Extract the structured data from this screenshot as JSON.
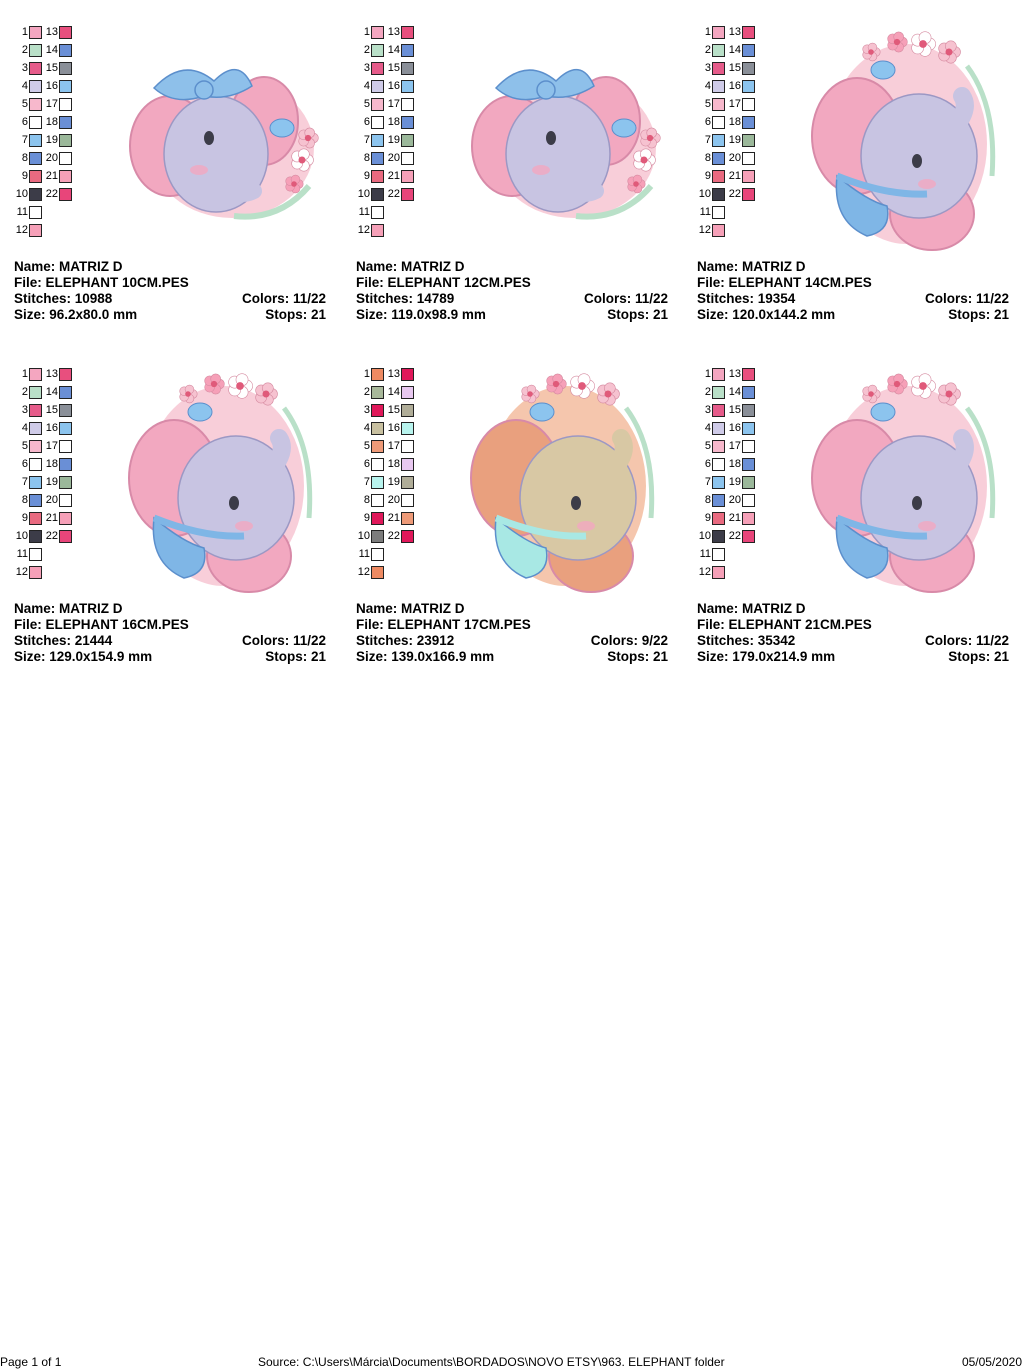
{
  "palette_numbers": [
    "1",
    "2",
    "3",
    "4",
    "5",
    "6",
    "7",
    "8",
    "9",
    "10",
    "11",
    "12",
    "13",
    "14",
    "15",
    "16",
    "17",
    "18",
    "19",
    "20",
    "21",
    "22"
  ],
  "labels": {
    "name": "Name:",
    "file": "File:",
    "stitches": "Stitches:",
    "colors": "Colors:",
    "size": "Size:",
    "stops": "Stops:"
  },
  "designs": [
    {
      "name": "MATRIZ D",
      "file": "ELEPHANT 10CM.PES",
      "stitches": "10988",
      "colors": "11/22",
      "size": "96.2x80.0 mm",
      "stops": "21",
      "variant": "a",
      "theme": {
        "body": "#c8c4e2",
        "ear": "#f2a8c0",
        "bow": "#8ec0ea",
        "ring": "#f6c2d0"
      },
      "swatches": [
        "#f4a6c0",
        "#b9e0c8",
        "#e65b8a",
        "#cfcbe8",
        "#f7b8cc",
        "#ffffff",
        "#8cc4ee",
        "#6a8fd6",
        "#e96a80",
        "#3c3c48",
        "#ffffff",
        "#f6a0b8",
        "#e84f7e",
        "#6a8fd6",
        "#8a8f98",
        "#8cc4ee",
        "#ffffff",
        "#6a8fd6",
        "#9bb89a",
        "#ffffff",
        "#f6a0b8",
        "#e8457a"
      ]
    },
    {
      "name": "MATRIZ D",
      "file": "ELEPHANT 12CM.PES",
      "stitches": "14789",
      "colors": "11/22",
      "size": "119.0x98.9 mm",
      "stops": "21",
      "variant": "a",
      "theme": {
        "body": "#c8c4e2",
        "ear": "#f2a8c0",
        "bow": "#8ec0ea",
        "ring": "#f6c2d0"
      },
      "swatches": [
        "#f4a6c0",
        "#b9e0c8",
        "#e65b8a",
        "#cfcbe8",
        "#f7b8cc",
        "#ffffff",
        "#8cc4ee",
        "#6a8fd6",
        "#e96a80",
        "#3c3c48",
        "#ffffff",
        "#f6a0b8",
        "#e84f7e",
        "#6a8fd6",
        "#8a8f98",
        "#8cc4ee",
        "#ffffff",
        "#6a8fd6",
        "#9bb89a",
        "#ffffff",
        "#f6a0b8",
        "#e8457a"
      ]
    },
    {
      "name": "MATRIZ D",
      "file": "ELEPHANT 14CM.PES",
      "stitches": "19354",
      "colors": "11/22",
      "size": "120.0x144.2 mm",
      "stops": "21",
      "variant": "b",
      "theme": {
        "body": "#c8c4e2",
        "ear": "#f2a8c0",
        "bow": "#7fb6e6",
        "ring": "#f6c2d0"
      },
      "swatches": [
        "#f4a6c0",
        "#b9e0c8",
        "#e65b8a",
        "#cfcbe8",
        "#f7b8cc",
        "#ffffff",
        "#8cc4ee",
        "#6a8fd6",
        "#e96a80",
        "#3c3c48",
        "#ffffff",
        "#f6a0b8",
        "#e84f7e",
        "#6a8fd6",
        "#8a8f98",
        "#8cc4ee",
        "#ffffff",
        "#6a8fd6",
        "#9bb89a",
        "#ffffff",
        "#f6a0b8",
        "#e8457a"
      ]
    },
    {
      "name": "MATRIZ D",
      "file": "ELEPHANT 16CM.PES",
      "stitches": "21444",
      "colors": "11/22",
      "size": "129.0x154.9 mm",
      "stops": "21",
      "variant": "b",
      "theme": {
        "body": "#c8c4e2",
        "ear": "#f2a8c0",
        "bow": "#7fb6e6",
        "ring": "#f6c2d0"
      },
      "swatches": [
        "#f4a6c0",
        "#b9e0c8",
        "#e65b8a",
        "#cfcbe8",
        "#f7b8cc",
        "#ffffff",
        "#8cc4ee",
        "#6a8fd6",
        "#e96a80",
        "#3c3c48",
        "#ffffff",
        "#f6a0b8",
        "#e84f7e",
        "#6a8fd6",
        "#8a8f98",
        "#8cc4ee",
        "#ffffff",
        "#6a8fd6",
        "#9bb89a",
        "#ffffff",
        "#f6a0b8",
        "#e8457a"
      ]
    },
    {
      "name": "MATRIZ D",
      "file": "ELEPHANT 17CM.PES",
      "stitches": "23912",
      "colors": "9/22",
      "size": "139.0x166.9 mm",
      "stops": "21",
      "variant": "b",
      "theme": {
        "body": "#d8c8a4",
        "ear": "#e9a07e",
        "bow": "#a8e8e4",
        "ring": "#f3b898"
      },
      "swatches": [
        "#ee8a62",
        "#a8b89a",
        "#e0185a",
        "#c8c0a0",
        "#ee9a78",
        "#ffffff",
        "#b8f4ee",
        "#ffffff",
        "#e0185a",
        "#7c7c7c",
        "#ffffff",
        "#ee8a62",
        "#e0185a",
        "#e8c8f0",
        "#b0ad98",
        "#b8f4ee",
        "#ffffff",
        "#e8c8f0",
        "#b0ad98",
        "#ffffff",
        "#ee9a78",
        "#e0185a"
      ]
    },
    {
      "name": "MATRIZ D",
      "file": "ELEPHANT 21CM.PES",
      "stitches": "35342",
      "colors": "11/22",
      "size": "179.0x214.9 mm",
      "stops": "21",
      "variant": "b",
      "theme": {
        "body": "#c8c4e2",
        "ear": "#f2a8c0",
        "bow": "#7fb6e6",
        "ring": "#f6c2d0"
      },
      "swatches": [
        "#f4a6c0",
        "#b9e0c8",
        "#e65b8a",
        "#cfcbe8",
        "#f7b8cc",
        "#ffffff",
        "#8cc4ee",
        "#6a8fd6",
        "#e96a80",
        "#3c3c48",
        "#ffffff",
        "#f6a0b8",
        "#e84f7e",
        "#6a8fd6",
        "#8a8f98",
        "#8cc4ee",
        "#ffffff",
        "#6a8fd6",
        "#9bb89a",
        "#ffffff",
        "#f6a0b8",
        "#e8457a"
      ]
    }
  ],
  "footer": {
    "page": "Page 1 of 1",
    "source": "Source: C:\\Users\\Márcia\\Documents\\BORDADOS\\NOVO ETSY\\963. ELEPHANT folder",
    "date": "05/05/2020"
  }
}
